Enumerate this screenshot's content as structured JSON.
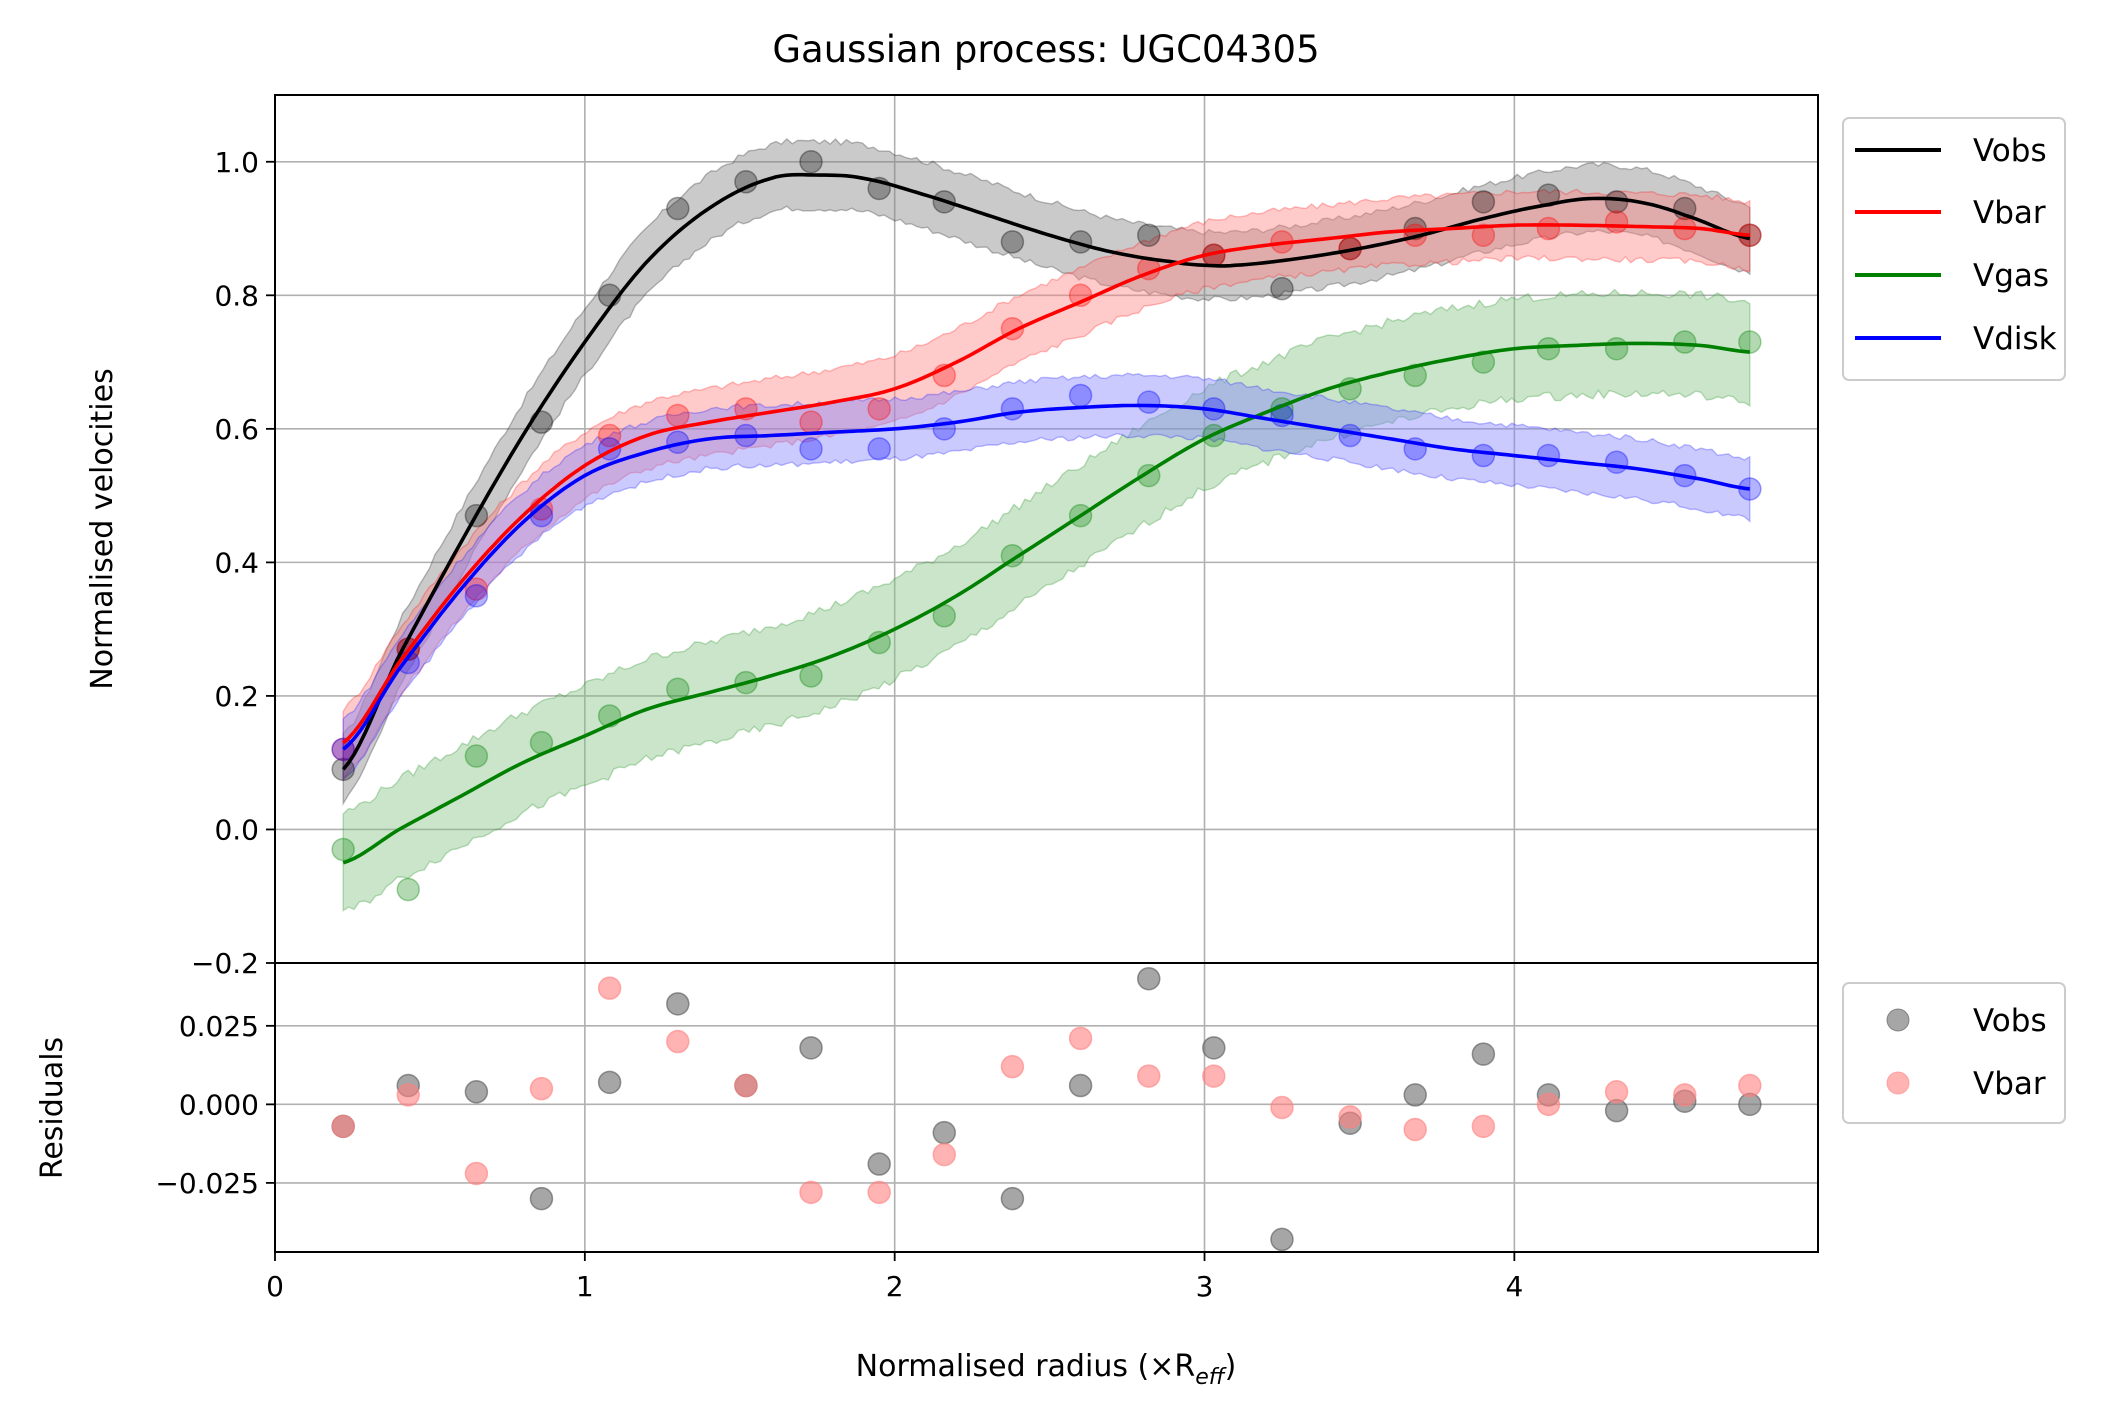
{
  "chart_data": [
    {
      "type": "line",
      "panel": "main",
      "title": "Gaussian process: UGC04305",
      "ylabel": "Normalised velocities",
      "xlim": [
        0,
        4.98
      ],
      "ylim": [
        -0.2,
        1.1
      ],
      "yticks": [
        -0.2,
        0.0,
        0.2,
        0.4,
        0.6,
        0.8,
        1.0
      ],
      "ytick_labels": [
        "−0.2",
        "0.0",
        "0.2",
        "0.4",
        "0.6",
        "0.8",
        "1.0"
      ],
      "grid": true,
      "legend_position": "upper right, outside",
      "x": [
        0.22,
        0.43,
        0.65,
        0.86,
        1.08,
        1.3,
        1.52,
        1.73,
        1.95,
        2.16,
        2.38,
        2.6,
        2.82,
        3.03,
        3.25,
        3.47,
        3.68,
        3.9,
        4.11,
        4.33,
        4.55,
        4.76
      ],
      "series": [
        {
          "name": "Vobs",
          "color": "#000000",
          "fill": "#808080",
          "points": [
            0.09,
            0.27,
            0.47,
            0.61,
            0.8,
            0.93,
            0.97,
            1.0,
            0.96,
            0.94,
            0.88,
            0.88,
            0.89,
            0.86,
            0.81,
            0.87,
            0.9,
            0.94,
            0.95,
            0.94,
            0.93,
            0.89
          ],
          "fit_x": [
            0.22,
            0.4,
            0.6,
            0.8,
            1.0,
            1.2,
            1.4,
            1.6,
            1.76,
            1.9,
            2.1,
            2.3,
            2.5,
            2.7,
            2.9,
            3.0,
            3.1,
            3.3,
            3.5,
            3.7,
            3.9,
            4.1,
            4.25,
            4.4,
            4.55,
            4.76
          ],
          "fit_y": [
            0.09,
            0.26,
            0.43,
            0.59,
            0.73,
            0.85,
            0.93,
            0.975,
            0.98,
            0.975,
            0.95,
            0.92,
            0.89,
            0.865,
            0.85,
            0.845,
            0.845,
            0.855,
            0.87,
            0.89,
            0.915,
            0.935,
            0.945,
            0.94,
            0.92,
            0.885
          ],
          "band_halfwidth": 0.05
        },
        {
          "name": "Vbar",
          "color": "#ff0000",
          "fill": "#ff8080",
          "points": [
            0.12,
            0.27,
            0.36,
            0.48,
            0.59,
            0.62,
            0.63,
            0.61,
            0.63,
            0.68,
            0.75,
            0.8,
            0.84,
            0.86,
            0.88,
            0.87,
            0.89,
            0.89,
            0.9,
            0.91,
            0.9,
            0.89
          ],
          "fit_x": [
            0.22,
            0.4,
            0.6,
            0.8,
            1.0,
            1.2,
            1.4,
            1.6,
            1.8,
            2.0,
            2.2,
            2.4,
            2.6,
            2.8,
            3.0,
            3.2,
            3.4,
            3.6,
            3.8,
            4.0,
            4.2,
            4.4,
            4.6,
            4.76
          ],
          "fit_y": [
            0.13,
            0.25,
            0.37,
            0.47,
            0.545,
            0.59,
            0.61,
            0.625,
            0.64,
            0.66,
            0.7,
            0.75,
            0.79,
            0.83,
            0.86,
            0.875,
            0.885,
            0.895,
            0.9,
            0.905,
            0.905,
            0.903,
            0.9,
            0.89
          ],
          "band_halfwidth": 0.05
        },
        {
          "name": "Vgas",
          "color": "#008000",
          "fill": "#80c080",
          "points": [
            -0.03,
            -0.09,
            0.11,
            0.13,
            0.17,
            0.21,
            0.22,
            0.23,
            0.28,
            0.32,
            0.41,
            0.47,
            0.53,
            0.59,
            0.63,
            0.66,
            0.68,
            0.7,
            0.72,
            0.72,
            0.73,
            0.73
          ],
          "fit_x": [
            0.22,
            0.4,
            0.6,
            0.8,
            1.0,
            1.2,
            1.4,
            1.6,
            1.8,
            2.0,
            2.2,
            2.4,
            2.6,
            2.8,
            3.0,
            3.2,
            3.4,
            3.6,
            3.8,
            4.0,
            4.2,
            4.4,
            4.6,
            4.76
          ],
          "fit_y": [
            -0.05,
            0.0,
            0.05,
            0.1,
            0.14,
            0.18,
            0.205,
            0.23,
            0.26,
            0.3,
            0.35,
            0.41,
            0.47,
            0.53,
            0.585,
            0.625,
            0.66,
            0.685,
            0.705,
            0.72,
            0.725,
            0.728,
            0.725,
            0.715
          ],
          "band_halfwidth": 0.075
        },
        {
          "name": "Vdisk",
          "color": "#0000ff",
          "fill": "#8080ff",
          "points": [
            0.12,
            0.25,
            0.35,
            0.47,
            0.57,
            0.58,
            0.59,
            0.57,
            0.57,
            0.6,
            0.63,
            0.65,
            0.64,
            0.63,
            0.62,
            0.59,
            0.57,
            0.56,
            0.56,
            0.55,
            0.53,
            0.51
          ],
          "fit_x": [
            0.22,
            0.4,
            0.6,
            0.8,
            1.0,
            1.2,
            1.4,
            1.6,
            1.8,
            2.0,
            2.2,
            2.4,
            2.6,
            2.8,
            3.0,
            3.2,
            3.4,
            3.6,
            3.8,
            4.0,
            4.2,
            4.4,
            4.6,
            4.76
          ],
          "fit_y": [
            0.12,
            0.24,
            0.36,
            0.46,
            0.53,
            0.565,
            0.585,
            0.59,
            0.595,
            0.6,
            0.61,
            0.625,
            0.632,
            0.635,
            0.63,
            0.615,
            0.6,
            0.585,
            0.57,
            0.56,
            0.55,
            0.54,
            0.525,
            0.51
          ],
          "band_halfwidth": 0.045
        }
      ]
    },
    {
      "type": "scatter",
      "panel": "residuals",
      "ylabel": "Residuals",
      "xlabel": "Normalised radius (×R",
      "xlabel_subscript": "eff",
      "xlabel_suffix": ")",
      "xlim": [
        0,
        4.98
      ],
      "ylim": [
        -0.047,
        0.045
      ],
      "xticks": [
        0,
        1,
        2,
        3,
        4
      ],
      "xtick_labels": [
        "0",
        "1",
        "2",
        "3",
        "4"
      ],
      "yticks": [
        -0.025,
        0.0,
        0.025
      ],
      "ytick_labels": [
        "−0.025",
        "0.000",
        "0.025"
      ],
      "grid": true,
      "legend_position": "upper right, outside",
      "x": [
        0.22,
        0.43,
        0.65,
        0.86,
        1.08,
        1.3,
        1.52,
        1.73,
        1.95,
        2.16,
        2.38,
        2.6,
        2.82,
        3.03,
        3.25,
        3.47,
        3.68,
        3.9,
        4.11,
        4.33,
        4.55,
        4.76
      ],
      "series": [
        {
          "name": "Vobs",
          "color": "#808080",
          "values": [
            -0.007,
            0.006,
            0.004,
            -0.03,
            0.007,
            0.032,
            0.006,
            0.018,
            -0.019,
            -0.009,
            -0.03,
            0.006,
            0.04,
            0.018,
            -0.043,
            -0.006,
            0.003,
            0.016,
            0.003,
            -0.002,
            0.001,
            0.0
          ]
        },
        {
          "name": "Vbar",
          "color": "#ff8080",
          "values": [
            -0.007,
            0.003,
            -0.022,
            0.005,
            0.037,
            0.02,
            0.006,
            -0.028,
            -0.028,
            -0.016,
            0.012,
            0.021,
            0.009,
            0.009,
            -0.001,
            -0.004,
            -0.008,
            -0.007,
            0.0,
            0.004,
            0.003,
            0.006
          ]
        }
      ]
    }
  ]
}
